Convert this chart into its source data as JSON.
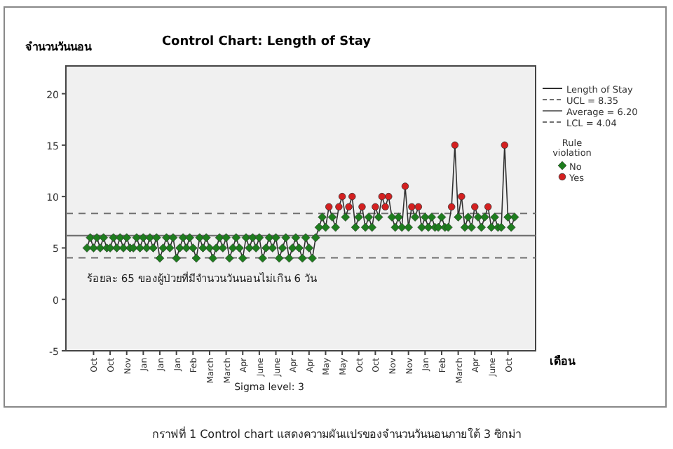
{
  "chart_data": {
    "type": "line",
    "title": "Control Chart: Length of Stay",
    "ylabel": "จำนวนวันนอน",
    "xlabel": "เดือน",
    "legend_title": "Rule violation",
    "annotations": [
      "ร้อยละ 65 ของผู้ป่วยที่มีจำนวนวันนอนไม่เกิน 6 วัน",
      "Sigma level:     3",
      "กราฟที่ 1 Control chart แสดงความผันแปรของจำนวนวันนอนภายใต้ 3 ซิกม่า"
    ],
    "categories": [
      null,
      null,
      "Oct",
      null,
      null,
      null,
      null,
      "Oct",
      null,
      null,
      null,
      null,
      "Nov",
      null,
      null,
      null,
      null,
      "Jan",
      null,
      null,
      null,
      null,
      "Jan",
      null,
      null,
      null,
      null,
      "Jan",
      null,
      null,
      null,
      null,
      "Feb",
      null,
      null,
      null,
      null,
      "March",
      null,
      null,
      null,
      null,
      "March",
      null,
      null,
      null,
      null,
      "Apr",
      null,
      null,
      null,
      null,
      "June",
      null,
      null,
      null,
      null,
      "June",
      null,
      null,
      null,
      null,
      "Apr",
      null,
      null,
      null,
      null,
      "Apr",
      null,
      null,
      null,
      null,
      "May",
      null,
      null,
      null,
      null,
      "May",
      null,
      null,
      null,
      null,
      "Oct",
      null,
      null,
      null,
      null,
      "Oct",
      null,
      null,
      null,
      null,
      "Nov",
      null,
      null,
      null,
      null,
      "Nov",
      null,
      null,
      null,
      null,
      "Jan",
      null,
      null,
      null,
      null,
      "Feb",
      null,
      null,
      null,
      null,
      "March",
      null,
      null,
      null,
      null,
      "Apr",
      null,
      null,
      null,
      null,
      "June",
      null,
      null,
      null,
      null,
      "Oct",
      null,
      null
    ],
    "series": [
      {
        "name": "Length of Stay",
        "type": "line",
        "color": "#303030",
        "values": [
          5,
          6,
          5,
          6,
          5,
          6,
          5,
          5,
          6,
          5,
          6,
          5,
          6,
          5,
          5,
          6,
          5,
          6,
          5,
          6,
          5,
          6,
          4,
          5,
          6,
          5,
          6,
          4,
          5,
          6,
          5,
          6,
          5,
          4,
          6,
          5,
          6,
          5,
          4,
          5,
          6,
          5,
          6,
          4,
          5,
          6,
          5,
          4,
          6,
          5,
          6,
          5,
          6,
          4,
          5,
          6,
          5,
          6,
          4,
          5,
          6,
          4,
          5,
          6,
          5,
          4,
          6,
          5,
          4,
          6,
          7,
          8,
          7,
          9,
          8,
          7,
          9,
          10,
          8,
          9,
          10,
          7,
          8,
          9,
          7,
          8,
          7,
          9,
          8,
          10,
          9,
          10,
          8,
          7,
          8,
          7,
          11,
          7,
          9,
          8,
          9,
          7,
          8,
          7,
          8,
          7,
          7,
          8,
          7,
          7,
          9,
          15,
          8,
          10,
          7,
          8,
          7,
          9,
          8,
          7,
          8,
          9,
          7,
          8,
          7,
          7,
          15,
          8,
          7,
          8
        ]
      },
      {
        "name": "No",
        "type": "scatter",
        "marker": "diamond",
        "color": "#1e7d1e",
        "values": [
          5,
          6,
          5,
          6,
          5,
          6,
          5,
          5,
          6,
          5,
          6,
          5,
          6,
          5,
          5,
          6,
          5,
          6,
          5,
          6,
          5,
          6,
          4,
          5,
          6,
          5,
          6,
          4,
          5,
          6,
          5,
          6,
          5,
          4,
          6,
          5,
          6,
          5,
          4,
          5,
          6,
          5,
          6,
          4,
          5,
          6,
          5,
          4,
          6,
          5,
          6,
          5,
          6,
          4,
          5,
          6,
          5,
          6,
          4,
          5,
          6,
          4,
          5,
          6,
          5,
          4,
          6,
          5,
          4,
          6,
          7,
          8,
          7,
          null,
          8,
          7,
          null,
          null,
          8,
          null,
          null,
          7,
          8,
          null,
          7,
          8,
          7,
          null,
          8,
          null,
          null,
          null,
          8,
          7,
          8,
          7,
          null,
          7,
          null,
          8,
          null,
          7,
          8,
          7,
          8,
          7,
          7,
          8,
          7,
          7,
          null,
          null,
          8,
          null,
          7,
          8,
          7,
          null,
          8,
          7,
          8,
          null,
          7,
          8,
          7,
          7,
          null,
          8,
          7,
          8
        ]
      },
      {
        "name": "Yes",
        "type": "scatter",
        "marker": "circle",
        "color": "#d42020",
        "values": [
          null,
          null,
          null,
          null,
          null,
          null,
          null,
          null,
          null,
          null,
          null,
          null,
          null,
          null,
          null,
          null,
          null,
          null,
          null,
          null,
          null,
          null,
          null,
          null,
          null,
          null,
          null,
          null,
          null,
          null,
          null,
          null,
          null,
          null,
          null,
          null,
          null,
          null,
          null,
          null,
          null,
          null,
          null,
          null,
          null,
          null,
          null,
          null,
          null,
          null,
          null,
          null,
          null,
          null,
          null,
          null,
          null,
          null,
          null,
          null,
          null,
          null,
          null,
          null,
          null,
          null,
          null,
          null,
          null,
          null,
          null,
          null,
          null,
          9,
          null,
          null,
          9,
          10,
          null,
          9,
          10,
          null,
          null,
          9,
          null,
          null,
          null,
          9,
          null,
          10,
          9,
          10,
          null,
          null,
          null,
          null,
          11,
          null,
          9,
          null,
          9,
          null,
          null,
          null,
          null,
          null,
          null,
          null,
          null,
          null,
          9,
          15,
          null,
          10,
          null,
          null,
          null,
          9,
          null,
          null,
          null,
          9,
          null,
          null,
          null,
          null,
          15,
          null,
          null,
          null
        ]
      }
    ],
    "ref_lines": [
      {
        "axis": "y",
        "value": 8.35,
        "label": "UCL = 8.35",
        "color": "#707070",
        "line_style": "dashed"
      },
      {
        "axis": "y",
        "value": 6.2,
        "label": "Average = 6.20",
        "color": "#707070",
        "line_style": "solid"
      },
      {
        "axis": "y",
        "value": 4.04,
        "label": "LCL = 4.04",
        "color": "#707070",
        "line_style": "dashed"
      }
    ],
    "ylim": [
      -5,
      22.7
    ],
    "yticks": [
      -5,
      0,
      5,
      10,
      15,
      20
    ],
    "grid": false,
    "legend": "right"
  }
}
